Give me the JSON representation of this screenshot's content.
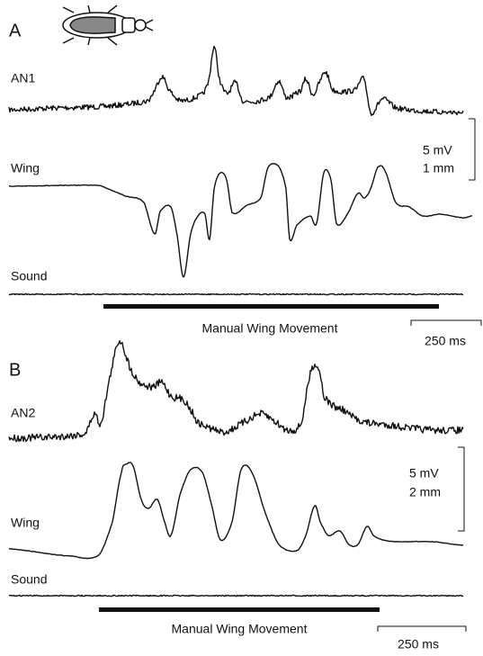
{
  "panels": [
    {
      "label": "A",
      "traces": [
        "AN1",
        "Wing",
        "Sound"
      ],
      "scale": [
        "5 mV",
        "1 mm"
      ],
      "bar_label": "Manual Wing Movement",
      "time_scale": "250 ms"
    },
    {
      "label": "B",
      "traces": [
        "AN2",
        "Wing",
        "Sound"
      ],
      "scale": [
        "5 mV",
        "2 mm"
      ],
      "bar_label": "Manual Wing Movement",
      "time_scale": "250 ms"
    }
  ]
}
